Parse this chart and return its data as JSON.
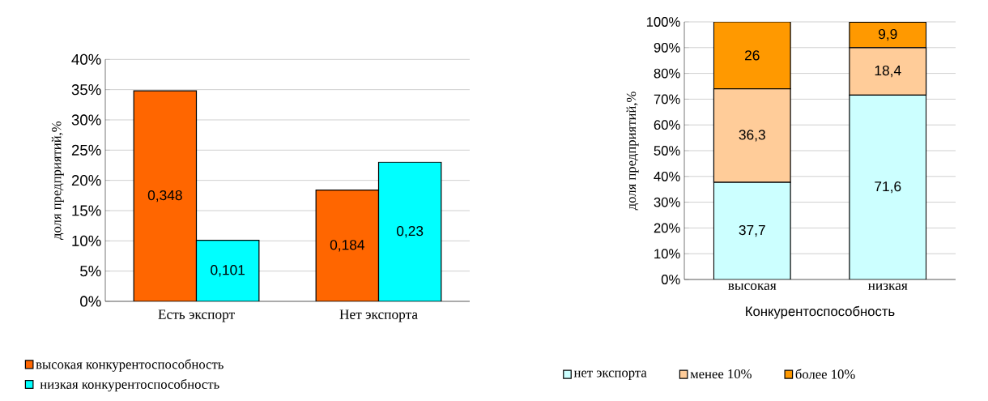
{
  "chart_data": [
    {
      "type": "bar",
      "ylabel": "доля предприятий,%",
      "categories": [
        "Есть экспорт",
        "Нет экспорта"
      ],
      "series": [
        {
          "name": "высокая конкурентоспособность",
          "color": "#ff6600",
          "values": [
            0.348,
            0.184
          ],
          "value_labels": [
            "0,348",
            "0,184"
          ]
        },
        {
          "name": "низкая конкурентоспособность",
          "color": "#00ffff",
          "values": [
            0.101,
            0.23
          ],
          "value_labels": [
            "0,101",
            "0,23"
          ]
        }
      ],
      "ylim": [
        0,
        0.4
      ],
      "yticks": [
        {
          "value": 0,
          "label": "0%"
        },
        {
          "value": 0.05,
          "label": "5%"
        },
        {
          "value": 0.1,
          "label": "10%"
        },
        {
          "value": 0.15,
          "label": "15%"
        },
        {
          "value": 0.2,
          "label": "20%"
        },
        {
          "value": 0.25,
          "label": "25%"
        },
        {
          "value": 0.3,
          "label": "30%"
        },
        {
          "value": 0.35,
          "label": "35%"
        },
        {
          "value": 0.4,
          "label": "40%"
        }
      ],
      "grid": "y",
      "legend": "bottom left"
    },
    {
      "type": "bar",
      "stacked": true,
      "xlabel": "Конкурентоспособность",
      "ylabel": "доля предприятий,%",
      "categories": [
        "высокая",
        "низкая"
      ],
      "series": [
        {
          "name": "нет экспорта",
          "color": "#ccffff",
          "values": [
            37.7,
            71.6
          ],
          "value_labels": [
            "37,7",
            "71,6"
          ]
        },
        {
          "name": "менее 10%",
          "color": "#ffcc99",
          "values": [
            36.3,
            18.4
          ],
          "value_labels": [
            "36,3",
            "18,4"
          ]
        },
        {
          "name": "более 10%",
          "color": "#ff9900",
          "values": [
            26,
            9.9
          ],
          "value_labels": [
            "26",
            "9,9"
          ]
        }
      ],
      "ylim": [
        0,
        100
      ],
      "yticks": [
        {
          "value": 0,
          "label": "0%"
        },
        {
          "value": 10,
          "label": "10%"
        },
        {
          "value": 20,
          "label": "20%"
        },
        {
          "value": 30,
          "label": "30%"
        },
        {
          "value": 40,
          "label": "40%"
        },
        {
          "value": 50,
          "label": "50%"
        },
        {
          "value": 60,
          "label": "60%"
        },
        {
          "value": 70,
          "label": "70%"
        },
        {
          "value": 80,
          "label": "80%"
        },
        {
          "value": 90,
          "label": "90%"
        },
        {
          "value": 100,
          "label": "100%"
        }
      ],
      "grid": "y",
      "legend": "bottom"
    }
  ]
}
